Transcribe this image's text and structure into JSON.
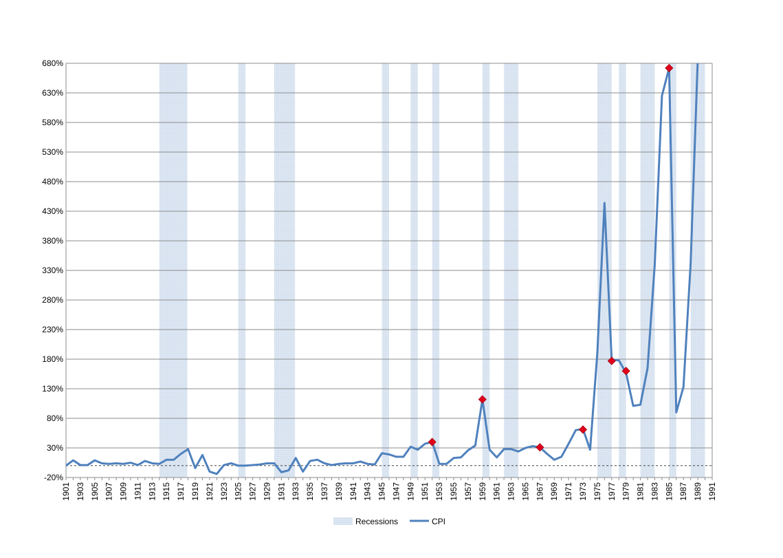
{
  "chart_data": {
    "type": "line",
    "title": "",
    "xlabel": "",
    "ylabel": "",
    "xlim": [
      1901,
      1991
    ],
    "ylim": [
      -20,
      680
    ],
    "y_ticks": [
      "680%",
      "630%",
      "580%",
      "530%",
      "480%",
      "430%",
      "380%",
      "330%",
      "280%",
      "230%",
      "180%",
      "130%",
      "80%",
      "30%",
      "-20%"
    ],
    "y_tick_values": [
      680,
      630,
      580,
      530,
      480,
      430,
      380,
      330,
      280,
      230,
      180,
      130,
      80,
      30,
      -20
    ],
    "x_ticks": [
      "1901",
      "1903",
      "1905",
      "1907",
      "1909",
      "1911",
      "1913",
      "1915",
      "1917",
      "1919",
      "1921",
      "1923",
      "1925",
      "1927",
      "1929",
      "1931",
      "1933",
      "1935",
      "1937",
      "1939",
      "1941",
      "1943",
      "1945",
      "1947",
      "1949",
      "1951",
      "1953",
      "1955",
      "1957",
      "1959",
      "1961",
      "1963",
      "1965",
      "1967",
      "1969",
      "1971",
      "1973",
      "1975",
      "1977",
      "1979",
      "1981",
      "1983",
      "1985",
      "1987",
      "1989",
      "1991"
    ],
    "grid": true,
    "legend": {
      "placement": "bottom",
      "entries": [
        "Recessions",
        "CPI"
      ]
    },
    "colors": {
      "cpi": "#4f81bd",
      "recession": "#dce6f2",
      "marker": "#e3001b"
    },
    "recessions": [
      [
        1914,
        1917.9
      ],
      [
        1925,
        1926
      ],
      [
        1930,
        1932.9
      ],
      [
        1945,
        1946
      ],
      [
        1949,
        1950
      ],
      [
        1952,
        1953
      ],
      [
        1959,
        1960
      ],
      [
        1962,
        1964
      ],
      [
        1975,
        1977
      ],
      [
        1978,
        1979
      ],
      [
        1981,
        1983
      ],
      [
        1985,
        1986
      ],
      [
        1988,
        1990
      ]
    ],
    "series": [
      {
        "name": "CPI",
        "x": [
          1901,
          1902,
          1903,
          1904,
          1905,
          1906,
          1907,
          1908,
          1909,
          1910,
          1911,
          1912,
          1913,
          1914,
          1915,
          1916,
          1917,
          1918,
          1919,
          1920,
          1921,
          1922,
          1923,
          1924,
          1925,
          1926,
          1927,
          1928,
          1929,
          1930,
          1931,
          1932,
          1933,
          1934,
          1935,
          1936,
          1937,
          1938,
          1939,
          1940,
          1941,
          1942,
          1943,
          1944,
          1945,
          1946,
          1947,
          1948,
          1949,
          1950,
          1951,
          1952,
          1953,
          1954,
          1955,
          1956,
          1957,
          1958,
          1959,
          1960,
          1961,
          1962,
          1963,
          1964,
          1965,
          1966,
          1967,
          1968,
          1969,
          1970,
          1971,
          1972,
          1973,
          1974,
          1975,
          1976,
          1977,
          1978,
          1979,
          1980,
          1981,
          1982,
          1983,
          1984,
          1985,
          1986,
          1987,
          1988,
          1989
        ],
        "values": [
          0,
          9,
          1,
          1,
          9,
          4,
          3,
          4,
          3,
          5,
          1,
          8,
          4,
          3,
          10,
          10,
          20,
          28,
          -4,
          18,
          -10,
          -14,
          1,
          4,
          0,
          0,
          1,
          2,
          4,
          4,
          -11,
          -8,
          13,
          -10,
          8,
          10,
          4,
          1,
          3,
          4,
          4,
          7,
          3,
          2,
          21,
          19,
          15,
          15,
          32,
          27,
          37,
          40,
          3,
          3,
          13,
          14,
          26,
          34,
          112,
          27,
          14,
          28,
          28,
          24,
          30,
          33,
          31,
          20,
          10,
          15,
          37,
          60,
          62,
          27,
          190,
          444,
          179,
          178,
          157,
          101,
          103,
          165,
          340,
          625,
          672,
          90,
          133,
          342,
          690
        ]
      }
    ],
    "markers": [
      {
        "x": 1952,
        "y": 40
      },
      {
        "x": 1959,
        "y": 112
      },
      {
        "x": 1967,
        "y": 31
      },
      {
        "x": 1973,
        "y": 61
      },
      {
        "x": 1977,
        "y": 177
      },
      {
        "x": 1979,
        "y": 160
      },
      {
        "x": 1985,
        "y": 672
      }
    ]
  }
}
